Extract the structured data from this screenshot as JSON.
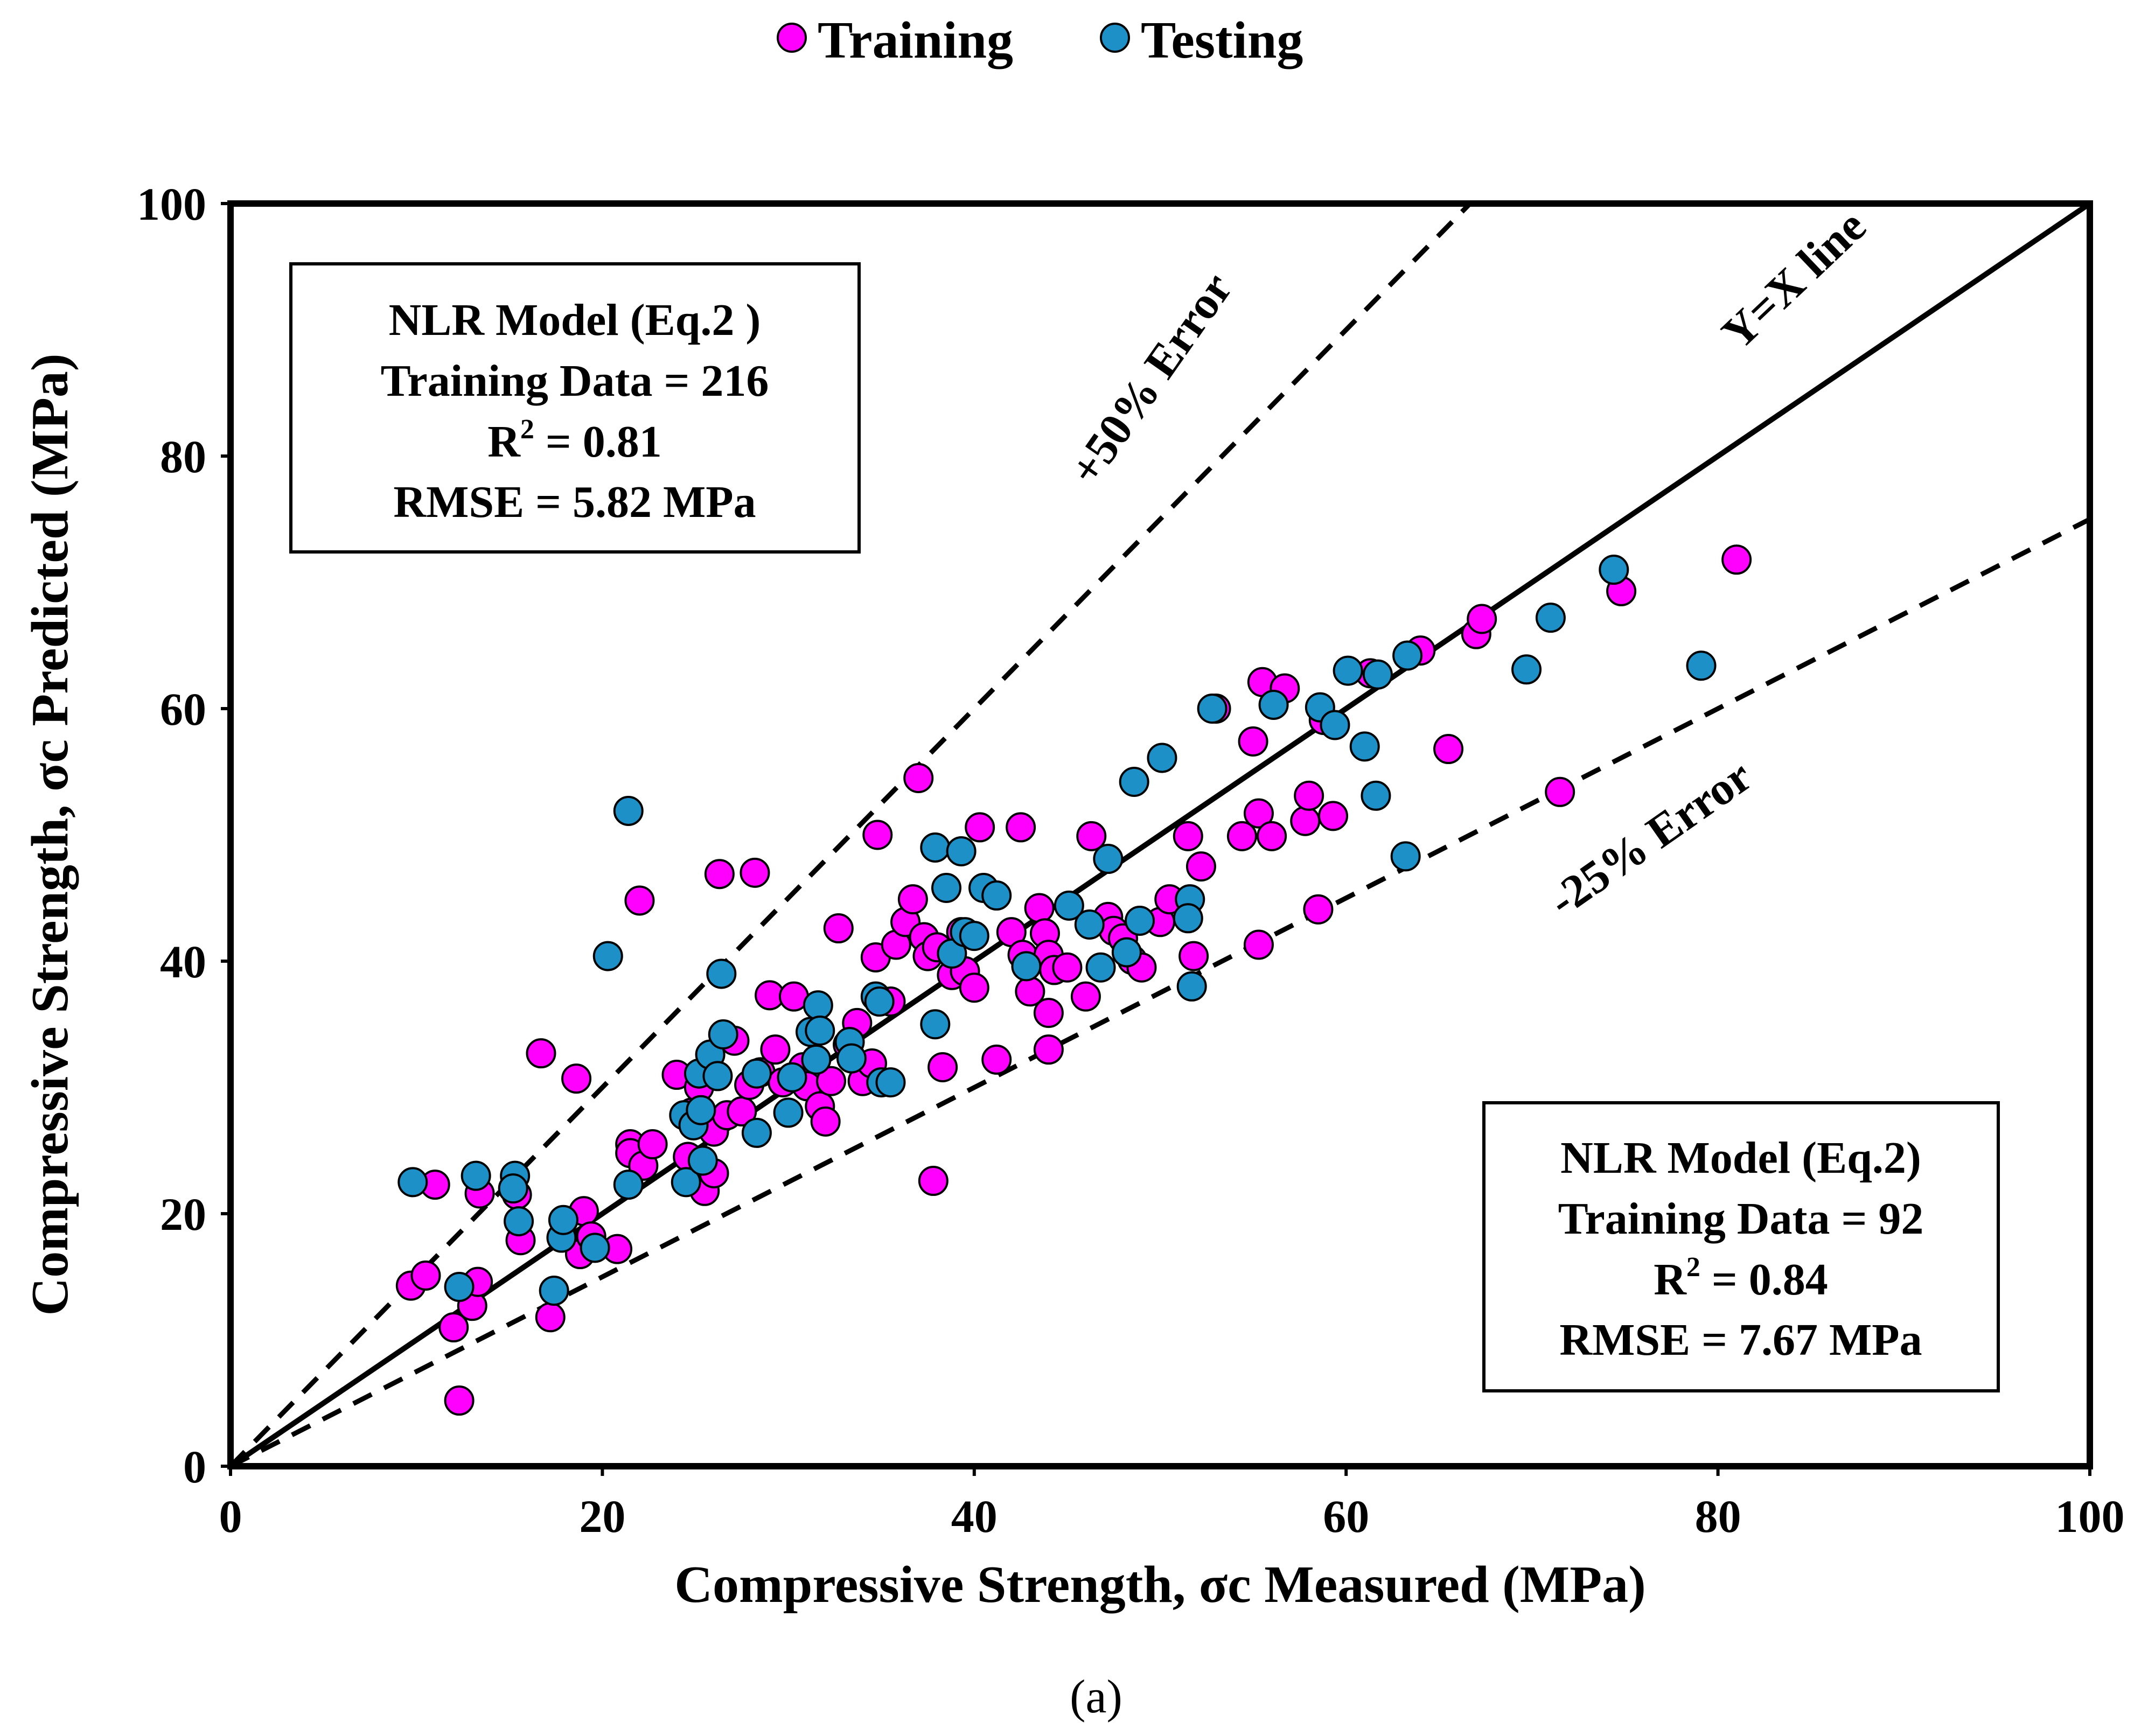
{
  "chart_data": {
    "type": "scatter",
    "title": "",
    "xlabel": "Compressive Strength, σc Measured (MPa)",
    "ylabel": "Compressive Strength, σc Predicted (MPa)",
    "xlim": [
      0,
      100
    ],
    "ylim": [
      0,
      100
    ],
    "x_ticks": [
      0,
      20,
      40,
      60,
      80,
      100
    ],
    "y_ticks": [
      0,
      20,
      40,
      60,
      80,
      100
    ],
    "grid": false,
    "legend_position": "top-center",
    "caption": "(a)",
    "colors": {
      "training": "#ff00ff",
      "testing": "#1e90c8"
    },
    "reference_lines": [
      {
        "label": "Y=X line",
        "slope": 1.0,
        "style": "solid"
      },
      {
        "label": "+50% Error",
        "slope": 1.5,
        "style": "dashed"
      },
      {
        "label": "-25% Error",
        "slope": 0.75,
        "style": "dashed"
      }
    ],
    "annotations": [
      {
        "position": "top-left",
        "line1": "NLR Model (Eq.2 )",
        "line2": "Training Data = 216",
        "r2_label": "R",
        "r2_sup": "2",
        "r2_value": " = 0.81",
        "line4": "RMSE = 5.82 MPa"
      },
      {
        "position": "bottom-right",
        "line1": "NLR Model (Eq.2)",
        "line2": "Training Data = 92",
        "r2_label": "R",
        "r2_sup": "2",
        "r2_value": " = 0.84",
        "line4": "RMSE = 7.67 MPa"
      }
    ],
    "series": [
      {
        "name": "Training",
        "color": "#ff00ff",
        "points": [
          [
            9.7,
            14.3
          ],
          [
            10.5,
            15.1
          ],
          [
            11,
            22.3
          ],
          [
            12,
            11
          ],
          [
            12.3,
            5.2
          ],
          [
            13,
            12.7
          ],
          [
            13.3,
            14.6
          ],
          [
            13.4,
            21.6
          ],
          [
            15.4,
            21.5
          ],
          [
            15.6,
            17.9
          ],
          [
            16.7,
            32.7
          ],
          [
            17.2,
            11.8
          ],
          [
            18.6,
            30.7
          ],
          [
            18.8,
            16.8
          ],
          [
            19,
            20.2
          ],
          [
            19.4,
            18.2
          ],
          [
            20.8,
            17.2
          ],
          [
            21.5,
            25.5
          ],
          [
            21.5,
            24.8
          ],
          [
            22,
            44.8
          ],
          [
            22.2,
            23.8
          ],
          [
            22.7,
            25.5
          ],
          [
            24,
            31
          ],
          [
            24.6,
            24.5
          ],
          [
            24.8,
            28
          ],
          [
            25.2,
            30
          ],
          [
            25.5,
            21.8
          ],
          [
            26,
            23.2
          ],
          [
            26,
            26.5
          ],
          [
            26.3,
            46.9
          ],
          [
            26.7,
            27.8
          ],
          [
            27.1,
            33.7
          ],
          [
            27.5,
            28.1
          ],
          [
            27.9,
            30.2
          ],
          [
            28.2,
            47
          ],
          [
            28.5,
            31.2
          ],
          [
            29,
            37.3
          ],
          [
            29.3,
            33
          ],
          [
            29.7,
            30.4
          ],
          [
            30.3,
            37.2
          ],
          [
            30.8,
            31.6
          ],
          [
            31,
            30.1
          ],
          [
            31.7,
            28.5
          ],
          [
            32,
            27.3
          ],
          [
            32.3,
            30.5
          ],
          [
            32.7,
            42.6
          ],
          [
            33.2,
            33.4
          ],
          [
            33.7,
            35.1
          ],
          [
            34,
            30.5
          ],
          [
            34.5,
            31.9
          ],
          [
            34.7,
            40.3
          ],
          [
            34.8,
            50
          ],
          [
            35.5,
            36.8
          ],
          [
            35.8,
            41.3
          ],
          [
            36.3,
            43.1
          ],
          [
            36.7,
            44.9
          ],
          [
            37,
            54.5
          ],
          [
            37.3,
            41.9
          ],
          [
            37.5,
            40.4
          ],
          [
            38,
            41.1
          ],
          [
            38.3,
            31.6
          ],
          [
            37.8,
            22.6
          ],
          [
            38.8,
            38.9
          ],
          [
            39.3,
            42.3
          ],
          [
            39.5,
            39.2
          ],
          [
            40,
            37.9
          ],
          [
            40.3,
            50.6
          ],
          [
            41.2,
            32.2
          ],
          [
            42,
            42.3
          ],
          [
            42.5,
            50.6
          ],
          [
            42.6,
            40.5
          ],
          [
            43,
            37.6
          ],
          [
            43.5,
            44.2
          ],
          [
            43.8,
            42.2
          ],
          [
            44,
            40.5
          ],
          [
            44,
            35.9
          ],
          [
            44,
            33
          ],
          [
            44.3,
            39.3
          ],
          [
            45,
            39.5
          ],
          [
            46,
            37.2
          ],
          [
            46.3,
            49.9
          ],
          [
            47.2,
            43.5
          ],
          [
            47.5,
            42.4
          ],
          [
            48,
            41.8
          ],
          [
            48.5,
            40.1
          ],
          [
            49,
            39.5
          ],
          [
            50,
            43.1
          ],
          [
            50.5,
            44.9
          ],
          [
            51.5,
            49.9
          ],
          [
            51.8,
            40.4
          ],
          [
            52.2,
            47.5
          ],
          [
            53,
            60
          ],
          [
            54.4,
            49.9
          ],
          [
            55,
            57.4
          ],
          [
            55.3,
            51.7
          ],
          [
            55.3,
            41.3
          ],
          [
            55.5,
            62.1
          ],
          [
            56,
            49.9
          ],
          [
            56.7,
            61.6
          ],
          [
            57.8,
            51.1
          ],
          [
            58,
            53.1
          ],
          [
            58.5,
            44.1
          ],
          [
            59.3,
            51.5
          ],
          [
            58.8,
            59.1
          ],
          [
            61.3,
            62.8
          ],
          [
            64,
            64.6
          ],
          [
            65.5,
            56.8
          ],
          [
            67,
            65.9
          ],
          [
            67.3,
            67.1
          ],
          [
            71.5,
            53.4
          ],
          [
            74.8,
            69.3
          ],
          [
            81,
            71.8
          ]
        ]
      },
      {
        "name": "Testing",
        "color": "#1e90c8",
        "points": [
          [
            9.8,
            22.5
          ],
          [
            12.3,
            14.2
          ],
          [
            13.2,
            23
          ],
          [
            15.3,
            23
          ],
          [
            15.2,
            22
          ],
          [
            15.5,
            19.4
          ],
          [
            17.4,
            13.9
          ],
          [
            17.8,
            18.1
          ],
          [
            17.9,
            19.5
          ],
          [
            19.6,
            17.3
          ],
          [
            20.3,
            40.4
          ],
          [
            21.4,
            51.9
          ],
          [
            21.4,
            22.3
          ],
          [
            24.4,
            27.8
          ],
          [
            24.5,
            22.5
          ],
          [
            24.9,
            27
          ],
          [
            25.2,
            31.1
          ],
          [
            25.3,
            28.2
          ],
          [
            25.4,
            24.2
          ],
          [
            25.8,
            32.6
          ],
          [
            26.2,
            30.9
          ],
          [
            26.4,
            39
          ],
          [
            26.5,
            34.2
          ],
          [
            28.3,
            31.1
          ],
          [
            28.3,
            26.4
          ],
          [
            30,
            28
          ],
          [
            30.2,
            30.8
          ],
          [
            31.2,
            34.4
          ],
          [
            31.5,
            32.2
          ],
          [
            31.6,
            36.5
          ],
          [
            31.7,
            34.5
          ],
          [
            33.3,
            33.6
          ],
          [
            33.4,
            32.3
          ],
          [
            34.7,
            37.2
          ],
          [
            34.9,
            36.8
          ],
          [
            35,
            30.4
          ],
          [
            35.5,
            30.4
          ],
          [
            37.9,
            35
          ],
          [
            37.9,
            49
          ],
          [
            38.5,
            45.8
          ],
          [
            38.8,
            40.6
          ],
          [
            39.3,
            48.7
          ],
          [
            39.5,
            42.3
          ],
          [
            40,
            42
          ],
          [
            40.5,
            45.8
          ],
          [
            41.2,
            45.2
          ],
          [
            42.8,
            39.6
          ],
          [
            45.1,
            44.4
          ],
          [
            46.2,
            42.9
          ],
          [
            46.8,
            39.5
          ],
          [
            47.2,
            48.1
          ],
          [
            48.2,
            40.7
          ],
          [
            48.6,
            54.2
          ],
          [
            48.9,
            43.2
          ],
          [
            50.1,
            56.1
          ],
          [
            51.6,
            44.9
          ],
          [
            51.5,
            43.4
          ],
          [
            51.7,
            38
          ],
          [
            52.8,
            60
          ],
          [
            56.1,
            60.3
          ],
          [
            58.6,
            60.1
          ],
          [
            59.4,
            58.7
          ],
          [
            60.1,
            63
          ],
          [
            61,
            57
          ],
          [
            61.6,
            53.1
          ],
          [
            61.7,
            62.7
          ],
          [
            63.2,
            48.3
          ],
          [
            63.3,
            64.2
          ],
          [
            69.7,
            63.1
          ],
          [
            71,
            67.2
          ],
          [
            74.4,
            71
          ],
          [
            79.1,
            63.4
          ]
        ]
      }
    ]
  }
}
